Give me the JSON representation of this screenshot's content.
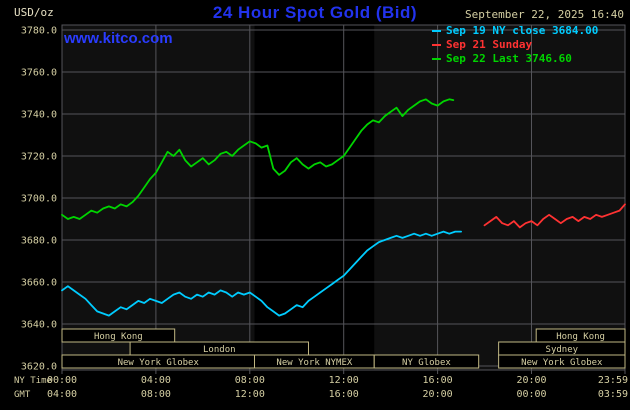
{
  "header": {
    "units_label": "USD/oz",
    "title": "24 Hour Spot Gold (Bid)",
    "datetime": "September 22, 2025 16:40",
    "watermark": "www.kitco.com",
    "legend": [
      {
        "label": "Sep 19 NY close 3684.00",
        "color": "#00ccff"
      },
      {
        "label": "Sep 21 Sunday",
        "color": "#ff3232"
      },
      {
        "label": "Sep 22 Last 3746.60",
        "color": "#00d400"
      }
    ]
  },
  "colors": {
    "page_bg": "#000000",
    "plot_bg": "#101010",
    "band": "#000000",
    "grid": "#55555a",
    "axis_text": "#d5cfa3",
    "units_text": "#e6e0c4",
    "title": "#2233ee",
    "link": "#2a3cff",
    "session_border": "#c0b783",
    "session_text": "#cfc693",
    "session_fill": "#000000"
  },
  "chart_data": {
    "type": "line",
    "title": "24 Hour Spot Gold (Bid)",
    "ylabel": "USD/oz",
    "ylim": [
      3620,
      3780
    ],
    "xlim_hours": [
      0,
      23.983
    ],
    "grid": true,
    "y_ticks": [
      3620,
      3640,
      3660,
      3680,
      3700,
      3720,
      3740,
      3760,
      3780
    ],
    "x_row_labels": [
      "NY Time",
      "GMT"
    ],
    "x_ticks": [
      {
        "h": 0,
        "ny": "00:00",
        "gmt": "04:00"
      },
      {
        "h": 4,
        "ny": "04:00",
        "gmt": "08:00"
      },
      {
        "h": 8,
        "ny": "08:00",
        "gmt": "12:00"
      },
      {
        "h": 12,
        "ny": "12:00",
        "gmt": "16:00"
      },
      {
        "h": 16,
        "ny": "16:00",
        "gmt": "20:00"
      },
      {
        "h": 20,
        "ny": "20:00",
        "gmt": "00:00"
      },
      {
        "h": 23.983,
        "ny": "23:59",
        "gmt": "03:59"
      }
    ],
    "shaded_band": {
      "start": 8.2,
      "end": 13.3
    },
    "series": [
      {
        "id": "sep19",
        "name": "Sep 19 NY close 3684.00",
        "color": "#00ccff",
        "points": [
          [
            0,
            3656
          ],
          [
            0.25,
            3658
          ],
          [
            0.5,
            3656
          ],
          [
            0.75,
            3654
          ],
          [
            1,
            3652
          ],
          [
            1.25,
            3649
          ],
          [
            1.5,
            3646
          ],
          [
            1.75,
            3645
          ],
          [
            2,
            3644
          ],
          [
            2.25,
            3646
          ],
          [
            2.5,
            3648
          ],
          [
            2.75,
            3647
          ],
          [
            3,
            3649
          ],
          [
            3.25,
            3651
          ],
          [
            3.5,
            3650
          ],
          [
            3.75,
            3652
          ],
          [
            4,
            3651
          ],
          [
            4.25,
            3650
          ],
          [
            4.5,
            3652
          ],
          [
            4.75,
            3654
          ],
          [
            5,
            3655
          ],
          [
            5.25,
            3653
          ],
          [
            5.5,
            3652
          ],
          [
            5.75,
            3654
          ],
          [
            6,
            3653
          ],
          [
            6.25,
            3655
          ],
          [
            6.5,
            3654
          ],
          [
            6.75,
            3656
          ],
          [
            7,
            3655
          ],
          [
            7.25,
            3653
          ],
          [
            7.5,
            3655
          ],
          [
            7.75,
            3654
          ],
          [
            8,
            3655
          ],
          [
            8.25,
            3653
          ],
          [
            8.5,
            3651
          ],
          [
            8.75,
            3648
          ],
          [
            9,
            3646
          ],
          [
            9.25,
            3644
          ],
          [
            9.5,
            3645
          ],
          [
            9.75,
            3647
          ],
          [
            10,
            3649
          ],
          [
            10.25,
            3648
          ],
          [
            10.5,
            3651
          ],
          [
            10.75,
            3653
          ],
          [
            11,
            3655
          ],
          [
            11.25,
            3657
          ],
          [
            11.5,
            3659
          ],
          [
            11.75,
            3661
          ],
          [
            12,
            3663
          ],
          [
            12.25,
            3666
          ],
          [
            12.5,
            3669
          ],
          [
            12.75,
            3672
          ],
          [
            13,
            3675
          ],
          [
            13.25,
            3677
          ],
          [
            13.5,
            3679
          ],
          [
            13.75,
            3680
          ],
          [
            14,
            3681
          ],
          [
            14.25,
            3682
          ],
          [
            14.5,
            3681
          ],
          [
            14.75,
            3682
          ],
          [
            15,
            3683
          ],
          [
            15.25,
            3682
          ],
          [
            15.5,
            3683
          ],
          [
            15.75,
            3682
          ],
          [
            16,
            3683
          ],
          [
            16.25,
            3684
          ],
          [
            16.5,
            3683
          ],
          [
            16.75,
            3684
          ],
          [
            17,
            3684
          ]
        ]
      },
      {
        "id": "sep21",
        "name": "Sep 21 Sunday",
        "color": "#ff3232",
        "points": [
          [
            18,
            3687
          ],
          [
            18.25,
            3689
          ],
          [
            18.5,
            3691
          ],
          [
            18.75,
            3688
          ],
          [
            19,
            3687
          ],
          [
            19.25,
            3689
          ],
          [
            19.5,
            3686
          ],
          [
            19.75,
            3688
          ],
          [
            20,
            3689
          ],
          [
            20.25,
            3687
          ],
          [
            20.5,
            3690
          ],
          [
            20.75,
            3692
          ],
          [
            21,
            3690
          ],
          [
            21.25,
            3688
          ],
          [
            21.5,
            3690
          ],
          [
            21.75,
            3691
          ],
          [
            22,
            3689
          ],
          [
            22.25,
            3691
          ],
          [
            22.5,
            3690
          ],
          [
            22.75,
            3692
          ],
          [
            23,
            3691
          ],
          [
            23.25,
            3692
          ],
          [
            23.5,
            3693
          ],
          [
            23.75,
            3694
          ],
          [
            23.983,
            3697
          ]
        ]
      },
      {
        "id": "sep22",
        "name": "Sep 22 Last 3746.60",
        "color": "#00d400",
        "points": [
          [
            0,
            3692
          ],
          [
            0.25,
            3690
          ],
          [
            0.5,
            3691
          ],
          [
            0.75,
            3690
          ],
          [
            1,
            3692
          ],
          [
            1.25,
            3694
          ],
          [
            1.5,
            3693
          ],
          [
            1.75,
            3695
          ],
          [
            2,
            3696
          ],
          [
            2.25,
            3695
          ],
          [
            2.5,
            3697
          ],
          [
            2.75,
            3696
          ],
          [
            3,
            3698
          ],
          [
            3.25,
            3701
          ],
          [
            3.5,
            3705
          ],
          [
            3.75,
            3709
          ],
          [
            4,
            3712
          ],
          [
            4.25,
            3717
          ],
          [
            4.5,
            3722
          ],
          [
            4.75,
            3720
          ],
          [
            5,
            3723
          ],
          [
            5.25,
            3718
          ],
          [
            5.5,
            3715
          ],
          [
            5.75,
            3717
          ],
          [
            6,
            3719
          ],
          [
            6.25,
            3716
          ],
          [
            6.5,
            3718
          ],
          [
            6.75,
            3721
          ],
          [
            7,
            3722
          ],
          [
            7.25,
            3720
          ],
          [
            7.5,
            3723
          ],
          [
            7.75,
            3725
          ],
          [
            8,
            3727
          ],
          [
            8.25,
            3726
          ],
          [
            8.5,
            3724
          ],
          [
            8.75,
            3725
          ],
          [
            9,
            3714
          ],
          [
            9.25,
            3711
          ],
          [
            9.5,
            3713
          ],
          [
            9.75,
            3717
          ],
          [
            10,
            3719
          ],
          [
            10.25,
            3716
          ],
          [
            10.5,
            3714
          ],
          [
            10.75,
            3716
          ],
          [
            11,
            3717
          ],
          [
            11.25,
            3715
          ],
          [
            11.5,
            3716
          ],
          [
            11.75,
            3718
          ],
          [
            12,
            3720
          ],
          [
            12.25,
            3724
          ],
          [
            12.5,
            3728
          ],
          [
            12.75,
            3732
          ],
          [
            13,
            3735
          ],
          [
            13.25,
            3737
          ],
          [
            13.5,
            3736
          ],
          [
            13.75,
            3739
          ],
          [
            14,
            3741
          ],
          [
            14.25,
            3743
          ],
          [
            14.5,
            3739
          ],
          [
            14.75,
            3742
          ],
          [
            15,
            3744
          ],
          [
            15.25,
            3746
          ],
          [
            15.5,
            3747
          ],
          [
            15.75,
            3745
          ],
          [
            16,
            3744
          ],
          [
            16.25,
            3746
          ],
          [
            16.5,
            3747
          ],
          [
            16.67,
            3746.6
          ]
        ]
      }
    ],
    "sessions": [
      {
        "label": "Hong Kong",
        "row": 0,
        "start": 0,
        "end": 4.8
      },
      {
        "label": "Hong Kong",
        "row": 0,
        "start": 20.2,
        "end": 23.983
      },
      {
        "label": "London",
        "row": 1,
        "start": 2.9,
        "end": 10.5
      },
      {
        "label": "Sydney",
        "row": 1,
        "start": 18.6,
        "end": 23.983
      },
      {
        "label": "New York Globex",
        "row": 2,
        "start": 0,
        "end": 8.2
      },
      {
        "label": "New York NYMEX",
        "row": 2,
        "start": 8.2,
        "end": 13.3
      },
      {
        "label": "NY Globex",
        "row": 2,
        "start": 13.3,
        "end": 17.75
      },
      {
        "label": "New York Globex",
        "row": 2,
        "start": 18.6,
        "end": 23.983
      }
    ]
  }
}
